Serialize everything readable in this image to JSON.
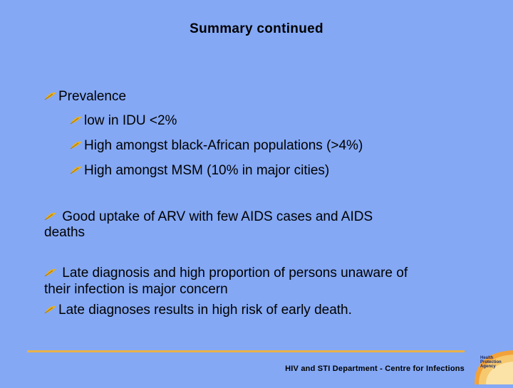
{
  "title": "Summary  continued",
  "bullets": {
    "prevalence": "Prevalence",
    "idu": "low in IDU <2%",
    "black_african": "High amongst black-African populations (>4%)",
    "msm": "High amongst MSM (10% in major cities)",
    "arv_line1": " Good uptake of ARV with few AIDS cases and AIDS",
    "arv_line2": "deaths",
    "late_line1": " Late diagnosis and high proportion of persons unaware of",
    "late_line2": "their infection is major concern",
    "late_deaths": "Late diagnoses results in high risk of early death."
  },
  "footer": "HIV and STI Department  - Centre for Infections",
  "logo": {
    "line1": "Health",
    "line2": "Protection",
    "line3": "Agency"
  },
  "colors": {
    "background": "#84A8F4",
    "rule": "#E8B24A",
    "bullet": "#E8B020"
  },
  "icons": {
    "bullet": "feather-bullet-icon",
    "logo": "hpa-logo-icon"
  }
}
